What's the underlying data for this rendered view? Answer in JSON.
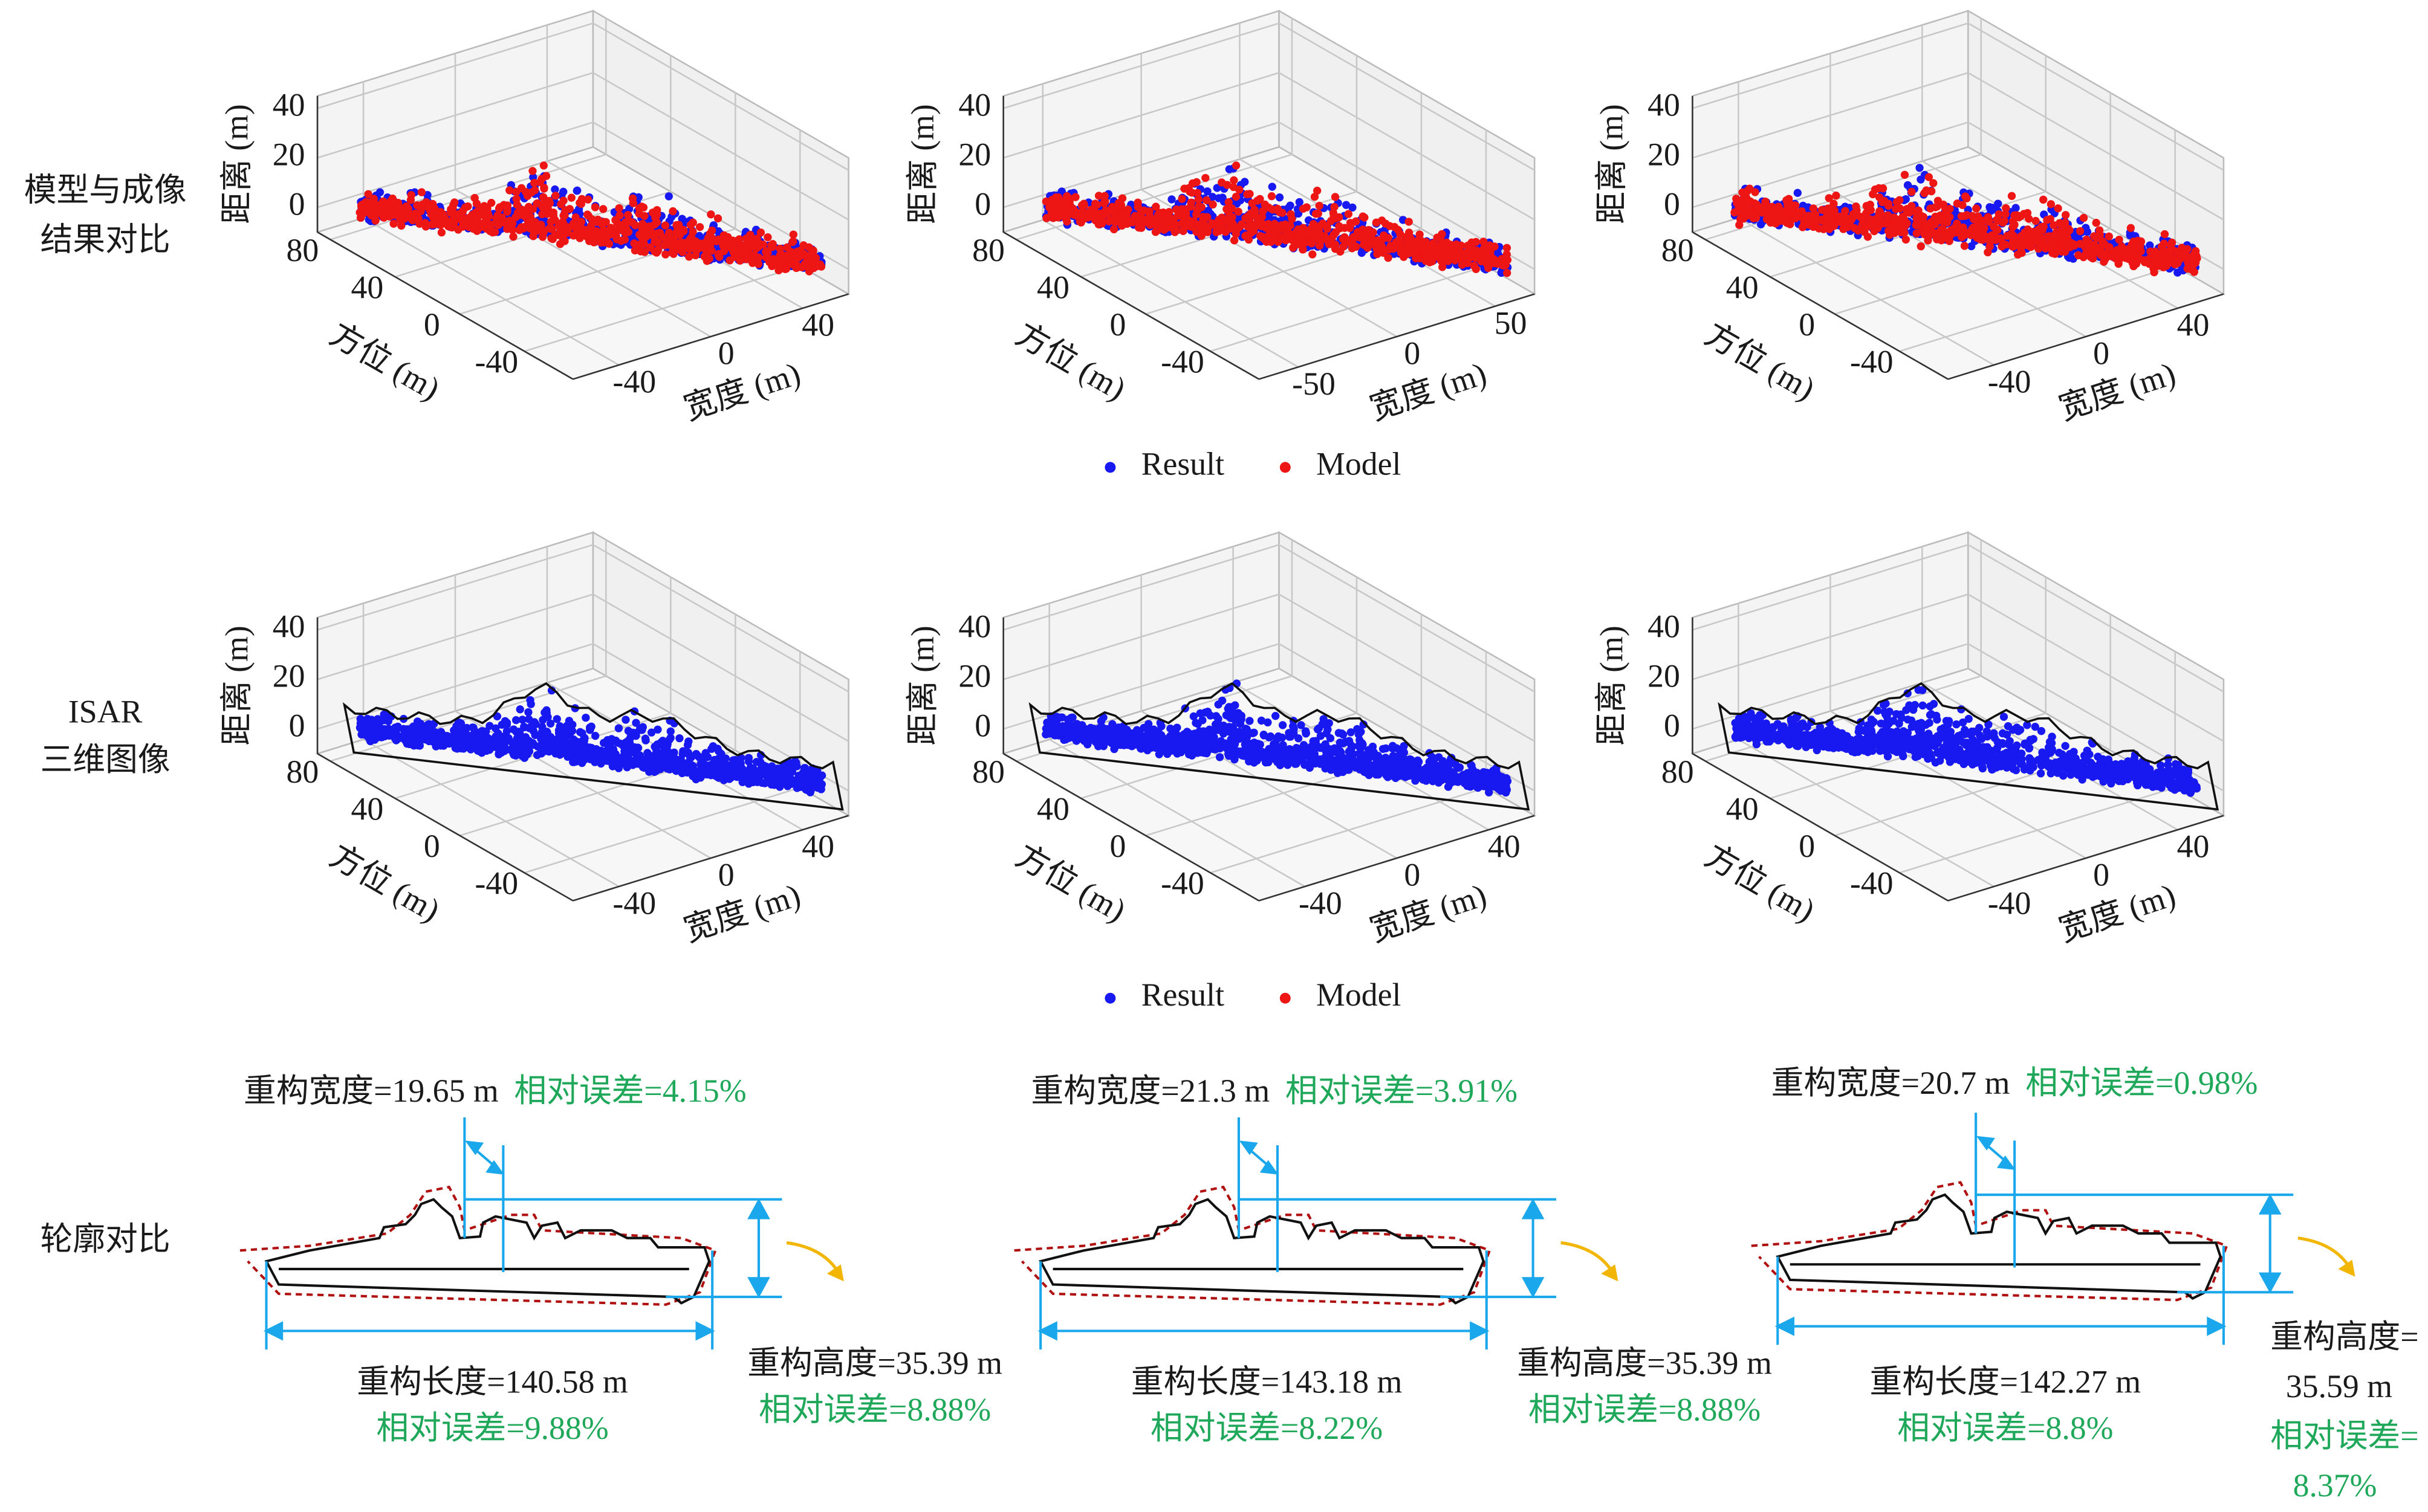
{
  "row_labels": [
    [
      "模型与成像",
      "结果对比"
    ],
    [
      "ISAR",
      "三维图像"
    ],
    [
      "轮廓对比"
    ]
  ],
  "plots": [
    {
      "z_label": "距离 (m)",
      "x_label": "方位 (m)",
      "y_label": "宽度 (m)",
      "zlim": [
        -10,
        45
      ],
      "zticks": [
        0,
        20,
        40
      ],
      "xlim": [
        88,
        -70
      ],
      "xticks": [
        80,
        40,
        0,
        -40
      ],
      "ylim": [
        -60,
        60
      ],
      "yticks": [
        -40,
        0,
        40
      ]
    },
    {
      "z_label": "距离 (m)",
      "x_label": "方位 (m)",
      "y_label": "宽度 (m)",
      "zlim": [
        -10,
        45
      ],
      "zticks": [
        0,
        20,
        40
      ],
      "xlim": [
        88,
        -70
      ],
      "xticks": [
        80,
        40,
        0,
        -40
      ],
      "ylim": [
        -70,
        70
      ],
      "yticks": [
        -50,
        0,
        50
      ]
    },
    {
      "z_label": "距离 (m)",
      "x_label": "方位 (m)",
      "y_label": "宽度 (m)",
      "zlim": [
        -10,
        45
      ],
      "zticks": [
        0,
        20,
        40
      ],
      "xlim": [
        88,
        -70
      ],
      "xticks": [
        80,
        40,
        0,
        -40
      ],
      "ylim": [
        -60,
        60
      ],
      "yticks": [
        -40,
        0,
        40
      ]
    },
    {
      "z_label": "距离 (m)",
      "x_label": "方位 (m)",
      "y_label": "宽度 (m)",
      "zlim": [
        -10,
        45
      ],
      "zticks": [
        0,
        20,
        40
      ],
      "xlim": [
        88,
        -70
      ],
      "xticks": [
        80,
        40,
        0,
        -40
      ],
      "ylim": [
        -60,
        60
      ],
      "yticks": [
        -40,
        0,
        40
      ]
    },
    {
      "z_label": "距离 (m)",
      "x_label": "方位 (m)",
      "y_label": "宽度 (m)",
      "zlim": [
        -10,
        45
      ],
      "zticks": [
        0,
        20,
        40
      ],
      "xlim": [
        88,
        -70
      ],
      "xticks": [
        80,
        40,
        0,
        -40
      ],
      "ylim": [
        -60,
        60
      ],
      "yticks": [
        -40,
        0,
        40
      ]
    },
    {
      "z_label": "距离 (m)",
      "x_label": "方位 (m)",
      "y_label": "宽度 (m)",
      "zlim": [
        -10,
        45
      ],
      "zticks": [
        0,
        20,
        40
      ],
      "xlim": [
        88,
        -70
      ],
      "xticks": [
        80,
        40,
        0,
        -40
      ],
      "ylim": [
        -60,
        60
      ],
      "yticks": [
        -40,
        0,
        40
      ]
    }
  ],
  "legends": [
    {
      "entries": [
        {
          "name": "Result",
          "color": "#1818f0"
        },
        {
          "name": "Model",
          "color": "#ee1515"
        }
      ]
    },
    {
      "entries": [
        {
          "name": "Result",
          "color": "#1818f0"
        },
        {
          "name": "Model",
          "color": "#ee1515"
        }
      ]
    }
  ],
  "contours": [
    {
      "width_label": "重构宽度=19.65 m",
      "width_error": "相对误差=4.15%",
      "length_label": "重构长度=140.58 m",
      "length_error": "相对误差=9.88%",
      "height_lines": [
        "重构高度=35.39 m"
      ],
      "height_error_lines": [
        "相对误差=8.88%"
      ]
    },
    {
      "width_label": "重构宽度=21.3 m",
      "width_error": "相对误差=3.91%",
      "length_label": "重构长度=143.18 m",
      "length_error": "相对误差=8.22%",
      "height_lines": [
        "重构高度=35.39 m"
      ],
      "height_error_lines": [
        "相对误差=8.88%"
      ]
    },
    {
      "width_label": "重构宽度=20.7 m",
      "width_error": "相对误差=0.98%",
      "length_label": "重构长度=142.27 m",
      "length_error": "相对误差=8.8%",
      "height_lines": [
        "重构高度=",
        "35.59 m"
      ],
      "height_error_lines": [
        "相对误差=",
        "8.37%"
      ]
    }
  ]
}
